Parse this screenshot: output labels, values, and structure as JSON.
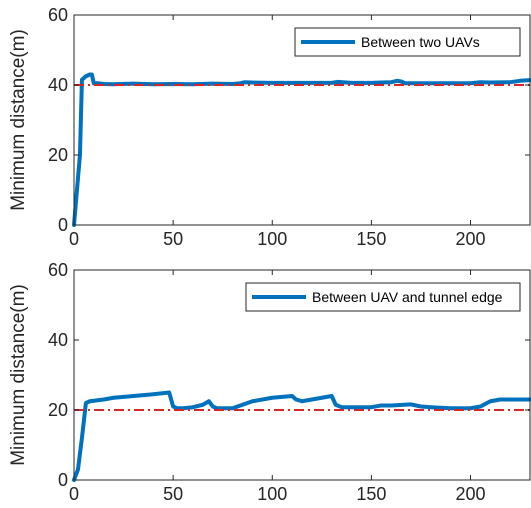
{
  "chart_data": [
    {
      "type": "line",
      "title": "",
      "xlabel": "",
      "ylabel": "Minimum distance(m)",
      "xlim": [
        0,
        230
      ],
      "ylim": [
        0,
        60
      ],
      "xticks": [
        0,
        50,
        100,
        150,
        200
      ],
      "yticks": [
        0,
        20,
        40,
        60
      ],
      "grid": false,
      "legend_position": "top-right",
      "series": [
        {
          "name": "Between two UAVs",
          "color": "#0072BD",
          "x": [
            0,
            3,
            4,
            5,
            6,
            8,
            9,
            10,
            12,
            15,
            20,
            30,
            40,
            50,
            60,
            70,
            80,
            84,
            86,
            90,
            100,
            110,
            120,
            130,
            133,
            140,
            150,
            160,
            163,
            165,
            167,
            170,
            180,
            190,
            200,
            205,
            210,
            220,
            225,
            230
          ],
          "y": [
            0,
            20,
            41.5,
            42,
            42.5,
            43,
            43,
            40.5,
            40.5,
            40.3,
            40.2,
            40.4,
            40.2,
            40.3,
            40.2,
            40.4,
            40.3,
            40.5,
            40.8,
            40.7,
            40.6,
            40.6,
            40.6,
            40.6,
            40.9,
            40.6,
            40.6,
            40.8,
            41.2,
            41,
            40.5,
            40.5,
            40.5,
            40.5,
            40.5,
            40.8,
            40.7,
            40.8,
            41.2,
            41.4
          ]
        },
        {
          "name": "",
          "color": "#D62728",
          "dash": "dashdot",
          "x": [
            0,
            230
          ],
          "y": [
            40,
            40
          ]
        }
      ]
    },
    {
      "type": "line",
      "title": "",
      "xlabel": "",
      "ylabel": "Minimum distance(m)",
      "xlim": [
        0,
        230
      ],
      "ylim": [
        0,
        60
      ],
      "xticks": [
        0,
        50,
        100,
        150,
        200
      ],
      "yticks": [
        0,
        20,
        40,
        60
      ],
      "grid": false,
      "legend_position": "top-right",
      "series": [
        {
          "name": "Between UAV and tunnel edge",
          "color": "#0072BD",
          "x": [
            0,
            2,
            4,
            6,
            8,
            15,
            20,
            30,
            40,
            48,
            50,
            52,
            55,
            60,
            65,
            68,
            70,
            72,
            75,
            80,
            85,
            90,
            100,
            110,
            112,
            115,
            120,
            125,
            130,
            132,
            135,
            140,
            150,
            155,
            160,
            170,
            175,
            180,
            190,
            200,
            205,
            210,
            215,
            220,
            230
          ],
          "y": [
            0,
            3,
            12,
            22,
            22.5,
            23,
            23.5,
            24,
            24.5,
            25,
            21,
            20.5,
            20.5,
            20.8,
            21.5,
            22.5,
            21,
            20.5,
            20.5,
            20.5,
            21.5,
            22.5,
            23.5,
            24,
            23,
            22.5,
            23,
            23.5,
            24,
            21.5,
            20.8,
            20.8,
            20.8,
            21.3,
            21.3,
            21.6,
            21,
            20.8,
            20.5,
            20.5,
            21,
            22.5,
            23,
            23,
            23
          ]
        },
        {
          "name": "",
          "color": "#D62728",
          "dash": "dashdot",
          "x": [
            0,
            230
          ],
          "y": [
            20,
            20
          ]
        }
      ]
    }
  ]
}
